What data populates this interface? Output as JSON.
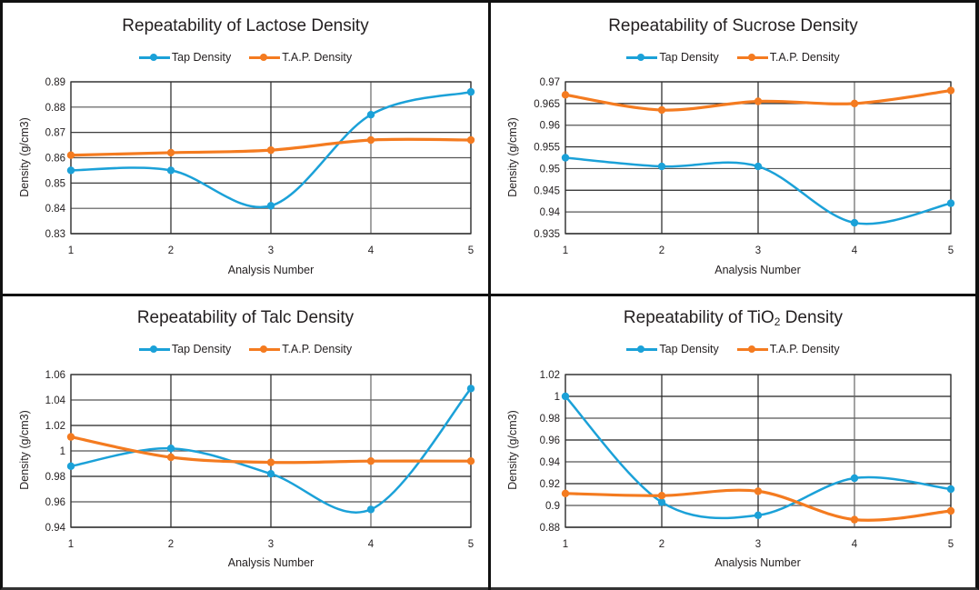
{
  "colors": {
    "tap": "#1ba1d8",
    "tap_density_alt": "#1ba1d8",
    "tap_accent": "#f47b20"
  },
  "series_colors": [
    "#1ba1d8",
    "#f47b20"
  ],
  "chart_data": [
    {
      "type": "line",
      "title_main": "Repeatability of Lactose Density",
      "title_sub": "",
      "title_tail": "",
      "xlabel": "Analysis Number",
      "ylabel": "Density (g/cm3)",
      "x": [
        1,
        2,
        3,
        4,
        5
      ],
      "xticks": [
        "1",
        "2",
        "3",
        "4",
        "5"
      ],
      "ylim": [
        0.83,
        0.89
      ],
      "yticks": [
        0.83,
        0.84,
        0.85,
        0.86,
        0.87,
        0.88,
        0.89
      ],
      "ytick_labels": [
        "0.83",
        "0.84",
        "0.85",
        "0.86",
        "0.87",
        "0.88",
        "0.89"
      ],
      "grid": true,
      "smooth": true,
      "legend": "top-center",
      "series": [
        {
          "name": "Tap Density",
          "values": [
            0.855,
            0.855,
            0.841,
            0.877,
            0.886
          ]
        },
        {
          "name": "T.A.P. Density",
          "values": [
            0.861,
            0.862,
            0.863,
            0.867,
            0.867
          ]
        }
      ]
    },
    {
      "type": "line",
      "title_main": "Repeatability of Sucrose Density",
      "title_sub": "",
      "title_tail": "",
      "xlabel": "Analysis Number",
      "ylabel": "Density (g/cm3)",
      "x": [
        1,
        2,
        3,
        4,
        5
      ],
      "xticks": [
        "1",
        "2",
        "3",
        "4",
        "5"
      ],
      "ylim": [
        0.935,
        0.97
      ],
      "yticks": [
        0.935,
        0.94,
        0.945,
        0.95,
        0.955,
        0.96,
        0.965,
        0.97
      ],
      "ytick_labels": [
        "0.935",
        "0.94",
        "0.945",
        "0.95",
        "0.955",
        "0.96",
        "0.965",
        "0.97"
      ],
      "grid": true,
      "smooth": true,
      "legend": "top-center",
      "series": [
        {
          "name": "Tap Density",
          "values": [
            0.9525,
            0.9505,
            0.9505,
            0.9375,
            0.942
          ]
        },
        {
          "name": "T.A.P. Density",
          "values": [
            0.967,
            0.9635,
            0.9655,
            0.965,
            0.968
          ]
        }
      ]
    },
    {
      "type": "line",
      "title_main": "Repeatability of Talc Density",
      "title_sub": "",
      "title_tail": "",
      "xlabel": "Analysis Number",
      "ylabel": "Density (g/cm3)",
      "x": [
        1,
        2,
        3,
        4,
        5
      ],
      "xticks": [
        "1",
        "2",
        "3",
        "4",
        "5"
      ],
      "ylim": [
        0.94,
        1.06
      ],
      "yticks": [
        0.94,
        0.96,
        0.98,
        1.0,
        1.02,
        1.04,
        1.06
      ],
      "ytick_labels": [
        "0.94",
        "0.96",
        "0.98",
        "1",
        "1.02",
        "1.04",
        "1.06"
      ],
      "grid": true,
      "smooth": true,
      "legend": "top-center",
      "series": [
        {
          "name": "Tap Density",
          "values": [
            0.988,
            1.002,
            0.982,
            0.954,
            1.049
          ]
        },
        {
          "name": "T.A.P. Density",
          "values": [
            1.011,
            0.995,
            0.991,
            0.992,
            0.992
          ]
        }
      ]
    },
    {
      "type": "line",
      "title_main": "Repeatability of TiO",
      "title_sub": "2",
      "title_tail": " Density",
      "xlabel": "Analysis Number",
      "ylabel": "Density (g/cm3)",
      "x": [
        1,
        2,
        3,
        4,
        5
      ],
      "xticks": [
        "1",
        "2",
        "3",
        "4",
        "5"
      ],
      "ylim": [
        0.88,
        1.02
      ],
      "yticks": [
        0.88,
        0.9,
        0.92,
        0.94,
        0.96,
        0.98,
        1.0,
        1.02
      ],
      "ytick_labels": [
        "0.88",
        "0.9",
        "0.92",
        "0.94",
        "0.96",
        "0.98",
        "1",
        "1.02"
      ],
      "grid": true,
      "smooth": true,
      "legend": "top-center",
      "series": [
        {
          "name": "Tap Density",
          "values": [
            1.0,
            0.903,
            0.891,
            0.925,
            0.915
          ]
        },
        {
          "name": "T.A.P. Density",
          "values": [
            0.911,
            0.909,
            0.913,
            0.887,
            0.895
          ]
        }
      ]
    }
  ]
}
